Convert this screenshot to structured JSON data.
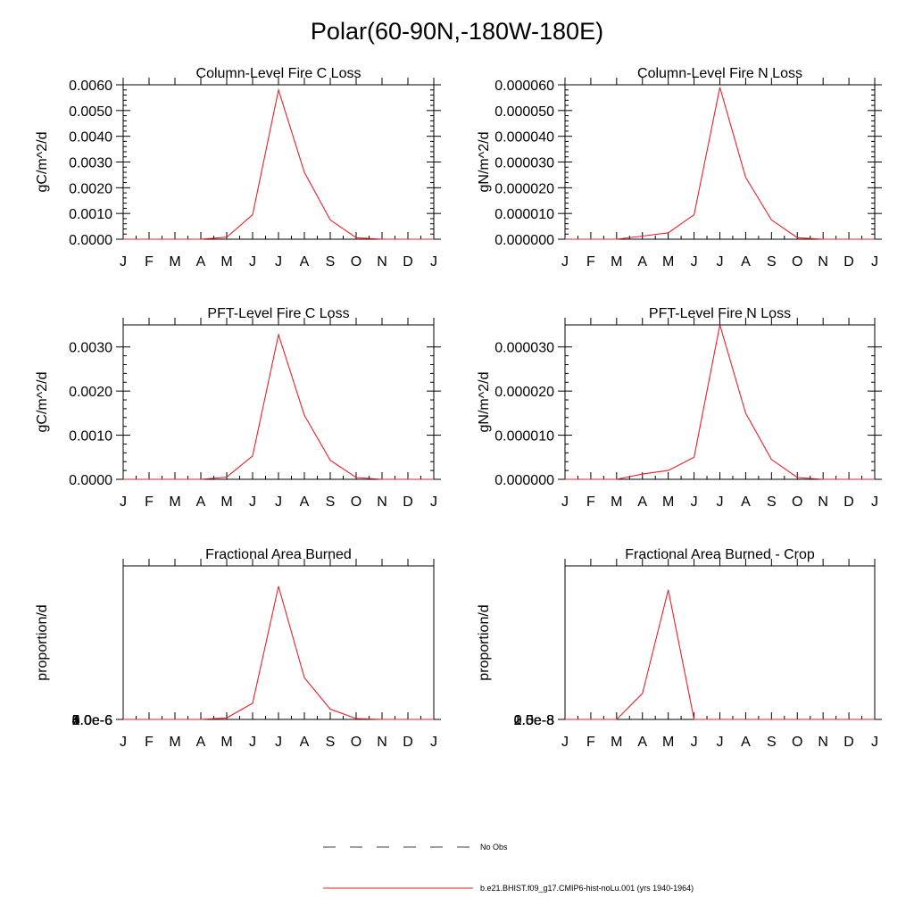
{
  "figure_title": "Polar(60-90N,-180W-180E)",
  "colors": {
    "model_line": "#e8202a",
    "axis": "#000000",
    "obs_line": "#000000"
  },
  "legend": {
    "obs_label": "No Obs",
    "model_label": "b.e21.BHIST.f09_g17.CMIP6-hist-noLu.001 (yrs 1940-1964)"
  },
  "chart_data": [
    {
      "type": "line",
      "title": "Column-Level Fire C Loss",
      "ylabel": "gC/m^2/d",
      "x": [
        "J",
        "F",
        "M",
        "A",
        "M",
        "J",
        "J",
        "A",
        "S",
        "O",
        "N",
        "D",
        "J"
      ],
      "ylim": [
        0,
        0.006
      ],
      "yticks": [
        "0.0000",
        "0.0010",
        "0.0020",
        "0.0030",
        "0.0040",
        "0.0050",
        "0.0060"
      ],
      "series": [
        {
          "values": [
            0,
            0,
            0,
            0,
            8e-05,
            0.00095,
            0.0058,
            0.0026,
            0.00075,
            6e-05,
            0,
            0,
            0
          ]
        }
      ]
    },
    {
      "type": "line",
      "title": "Column-Level Fire N Loss",
      "ylabel": "gN/m^2/d",
      "x": [
        "J",
        "F",
        "M",
        "A",
        "M",
        "J",
        "J",
        "A",
        "S",
        "O",
        "N",
        "D",
        "J"
      ],
      "ylim": [
        0,
        6e-05
      ],
      "yticks": [
        "0.000000",
        "0.000010",
        "0.000020",
        "0.000030",
        "0.000040",
        "0.000050",
        "0.000060"
      ],
      "series": [
        {
          "values": [
            0,
            0,
            0,
            1.2e-06,
            2.5e-06,
            9.5e-06,
            5.9e-05,
            2.4e-05,
            7.5e-06,
            6e-07,
            0,
            0,
            0
          ]
        }
      ]
    },
    {
      "type": "line",
      "title": "PFT-Level Fire C Loss",
      "ylabel": "gC/m^2/d",
      "x": [
        "J",
        "F",
        "M",
        "A",
        "M",
        "J",
        "J",
        "A",
        "S",
        "O",
        "N",
        "D",
        "J"
      ],
      "ylim": [
        0,
        0.0035
      ],
      "yticks": [
        "0.0000",
        "0.0010",
        "0.0020",
        "0.0030"
      ],
      "series": [
        {
          "values": [
            0,
            0,
            0,
            0,
            5e-05,
            0.00053,
            0.00328,
            0.00145,
            0.00043,
            4e-05,
            0,
            0,
            0
          ]
        }
      ]
    },
    {
      "type": "line",
      "title": "PFT-Level Fire N Loss",
      "ylabel": "gN/m^2/d",
      "x": [
        "J",
        "F",
        "M",
        "A",
        "M",
        "J",
        "J",
        "A",
        "S",
        "O",
        "N",
        "D",
        "J"
      ],
      "ylim": [
        0,
        3.5e-05
      ],
      "yticks": [
        "0.000000",
        "0.000010",
        "0.000020",
        "0.000030"
      ],
      "series": [
        {
          "values": [
            0,
            0,
            0,
            1.2e-06,
            2e-06,
            5e-06,
            3.5e-05,
            1.5e-05,
            4.5e-06,
            4e-07,
            0,
            0,
            0
          ]
        }
      ]
    },
    {
      "type": "line",
      "title": "Fractional Area Burned",
      "ylabel": "proportion/d",
      "x": [
        "J",
        "F",
        "M",
        "A",
        "M",
        "J",
        "J",
        "A",
        "S",
        "O",
        "N",
        "D",
        "J"
      ],
      "ylim": [
        0,
        6e-06
      ],
      "yticks": [
        "0.0e-6",
        "1.0e-6",
        "2.0e-6",
        "3.0e-6",
        "4.0e-6",
        "5.0e-6",
        "6.0e-6"
      ],
      "series": [
        {
          "values": [
            0,
            0,
            0,
            0,
            6e-08,
            6.3e-07,
            5.2e-06,
            1.63e-06,
            4e-07,
            3e-08,
            0,
            0,
            0
          ]
        }
      ]
    },
    {
      "type": "line",
      "title": "Fractional Area Burned - Crop",
      "ylabel": "proportion/d",
      "x": [
        "J",
        "F",
        "M",
        "A",
        "M",
        "J",
        "J",
        "A",
        "S",
        "O",
        "N",
        "D",
        "J"
      ],
      "ylim": [
        0,
        3e-08
      ],
      "yticks": [
        "0.0e-8",
        "0.5e-8",
        "1.0e-8",
        "1.5e-8",
        "2.0e-8",
        "2.5e-8"
      ],
      "series": [
        {
          "values": [
            0,
            0,
            0,
            5.1e-09,
            2.53e-08,
            0,
            0,
            0,
            0,
            0,
            0,
            0,
            0
          ]
        }
      ]
    }
  ]
}
